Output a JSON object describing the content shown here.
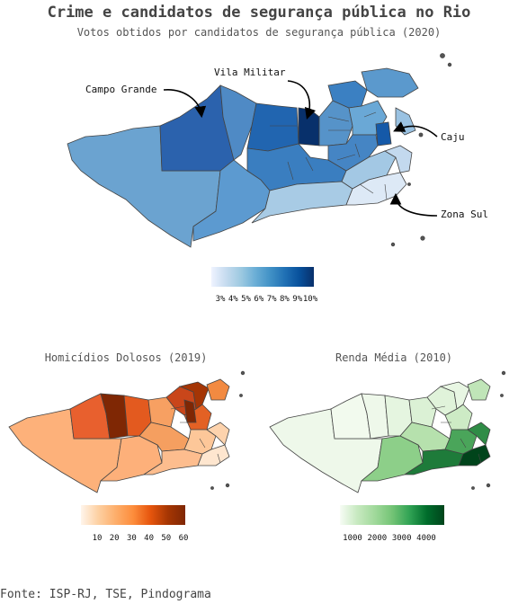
{
  "title": "Crime e candidatos de segurança pública no Rio",
  "subtitle": "Votos obtidos por candidatos de segurança pública (2020)",
  "annotations": [
    {
      "id": "campo-grande",
      "text": "Campo Grande"
    },
    {
      "id": "vila-militar",
      "text": "Vila Militar"
    },
    {
      "id": "caju",
      "text": "Caju"
    },
    {
      "id": "zona-sul",
      "text": "Zona Sul"
    }
  ],
  "main_legend": {
    "ticks": [
      "3%",
      "4%",
      "5%",
      "6%",
      "7%",
      "8%",
      "9%",
      "10%"
    ],
    "colors": [
      "#eff3ff",
      "#c6dbef",
      "#9ecae1",
      "#6baed6",
      "#4292c6",
      "#2171b5",
      "#08519c",
      "#08306b"
    ]
  },
  "homicide_map": {
    "title": "Homicídios Dolosos (2019)",
    "ticks": [
      "10",
      "20",
      "30",
      "40",
      "50",
      "60"
    ],
    "colors": [
      "#fff5eb",
      "#fdd0a2",
      "#fdae6b",
      "#fd8d3c",
      "#e6550d",
      "#a63603",
      "#7f2704"
    ]
  },
  "income_map": {
    "title": "Renda Média (2010)",
    "ticks": [
      "1000",
      "2000",
      "3000",
      "4000"
    ],
    "colors": [
      "#f7fcf5",
      "#c7e9c0",
      "#a1d99b",
      "#74c476",
      "#31a354",
      "#006d2c",
      "#00441b"
    ]
  },
  "source": "Fonte: ISP-RJ, TSE, Pindograma"
}
